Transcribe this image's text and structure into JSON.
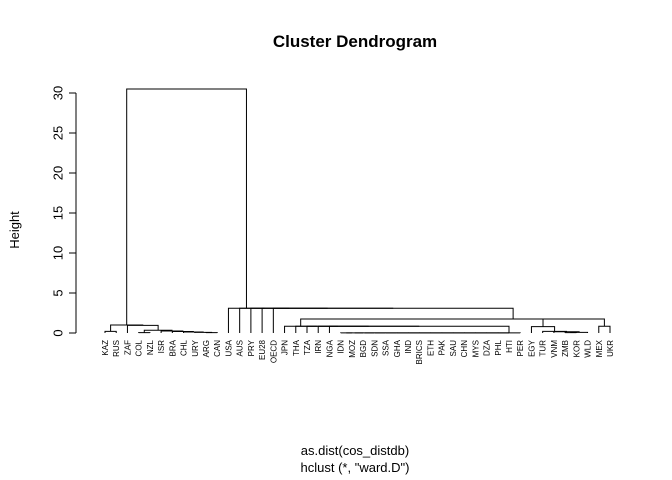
{
  "chart_data": {
    "type": "dendrogram",
    "title": "Cluster Dendrogram",
    "ylabel": "Height",
    "xlabel": "as.dist(cos_distdb)",
    "sublabel": "hclust (*, \"ward.D\")",
    "ylim": [
      0,
      31
    ],
    "yticks": [
      0,
      5,
      10,
      15,
      20,
      25,
      30
    ],
    "leaves": [
      "KAZ",
      "RUS",
      "ZAF",
      "COL",
      "NZL",
      "ISR",
      "BRA",
      "CHL",
      "URY",
      "ARG",
      "CAN",
      "USA",
      "AUS",
      "PRY",
      "EU28",
      "OECD",
      "JPN",
      "THA",
      "TZA",
      "IRN",
      "NGA",
      "IDN",
      "MOZ",
      "BGD",
      "SDN",
      "SSA",
      "GHA",
      "IND",
      "BRICS",
      "ETH",
      "PAK",
      "SAU",
      "CHN",
      "MYS",
      "DZA",
      "PHL",
      "HTI",
      "PER",
      "EGY",
      "TUR",
      "VNM",
      "ZMB",
      "KOR",
      "WLD",
      "MEX",
      "UKR"
    ],
    "merges": [
      {
        "left": "KAZ",
        "right": "RUS",
        "height": 0.2
      },
      {
        "left": "COL",
        "right": "NZL",
        "height": 0.05
      },
      {
        "left": "ARG",
        "right": "CAN",
        "height": 0.05
      },
      {
        "left": "URY",
        "right": "m3",
        "height": 0.08
      },
      {
        "left": "CHL",
        "right": "m4",
        "height": 0.12
      },
      {
        "left": "BRA",
        "right": "m5",
        "height": 0.18
      },
      {
        "left": "ISR",
        "right": "m6",
        "height": 0.25
      },
      {
        "left": "m2",
        "right": "m7",
        "height": 0.35
      },
      {
        "left": "ZAF",
        "right": "m8",
        "height": 0.95
      },
      {
        "left": "m1",
        "right": "m9",
        "height": 1.0
      },
      {
        "left": "IDN",
        "right": "MOZ",
        "height": 0.02
      },
      {
        "left": "m11",
        "right": "BGD",
        "height": 0.02
      },
      {
        "left": "m12",
        "right": "SDN",
        "height": 0.02
      },
      {
        "left": "m13",
        "right": "SSA",
        "height": 0.02
      },
      {
        "left": "m14",
        "right": "GHA",
        "height": 0.02
      },
      {
        "left": "m15",
        "right": "IND",
        "height": 0.02
      },
      {
        "left": "m16",
        "right": "BRICS",
        "height": 0.02
      },
      {
        "left": "m17",
        "right": "ETH",
        "height": 0.02
      },
      {
        "left": "m18",
        "right": "PAK",
        "height": 0.02
      },
      {
        "left": "m19",
        "right": "SAU",
        "height": 0.02
      },
      {
        "left": "m20",
        "right": "CHN",
        "height": 0.02
      },
      {
        "left": "m21",
        "right": "MYS",
        "height": 0.02
      },
      {
        "left": "m22",
        "right": "DZA",
        "height": 0.02
      },
      {
        "left": "m23",
        "right": "PHL",
        "height": 0.02
      },
      {
        "left": "m24",
        "right": "HTI",
        "height": 0.02
      },
      {
        "left": "m25",
        "right": "PER",
        "height": 0.02
      },
      {
        "left": "NGA",
        "right": "m26",
        "height": 0.85
      },
      {
        "left": "IRN",
        "right": "m27",
        "height": 0.85
      },
      {
        "left": "TZA",
        "right": "m28",
        "height": 0.85
      },
      {
        "left": "THA",
        "right": "m29",
        "height": 0.85
      },
      {
        "left": "JPN",
        "right": "m30",
        "height": 0.85
      },
      {
        "left": "ZMB",
        "right": "KOR",
        "height": 0.05
      },
      {
        "left": "m32",
        "right": "WLD",
        "height": 0.08
      },
      {
        "left": "VNM",
        "right": "m33",
        "height": 0.15
      },
      {
        "left": "TUR",
        "right": "m34",
        "height": 0.2
      },
      {
        "left": "EGY",
        "right": "m35",
        "height": 0.8
      },
      {
        "left": "m31",
        "right": "m36",
        "height": 1.75
      },
      {
        "left": "MEX",
        "right": "UKR",
        "height": 0.85
      },
      {
        "left": "m37",
        "right": "m38",
        "height": 1.75
      },
      {
        "left": "OECD",
        "right": "m39",
        "height": 3.1
      },
      {
        "left": "EU28",
        "right": "m40",
        "height": 3.1
      },
      {
        "left": "PRY",
        "right": "m41",
        "height": 3.1
      },
      {
        "left": "AUS",
        "right": "m42",
        "height": 3.1
      },
      {
        "left": "USA",
        "right": "m43",
        "height": 3.1
      },
      {
        "left": "m10",
        "right": "m44",
        "height": 30.5
      }
    ]
  }
}
